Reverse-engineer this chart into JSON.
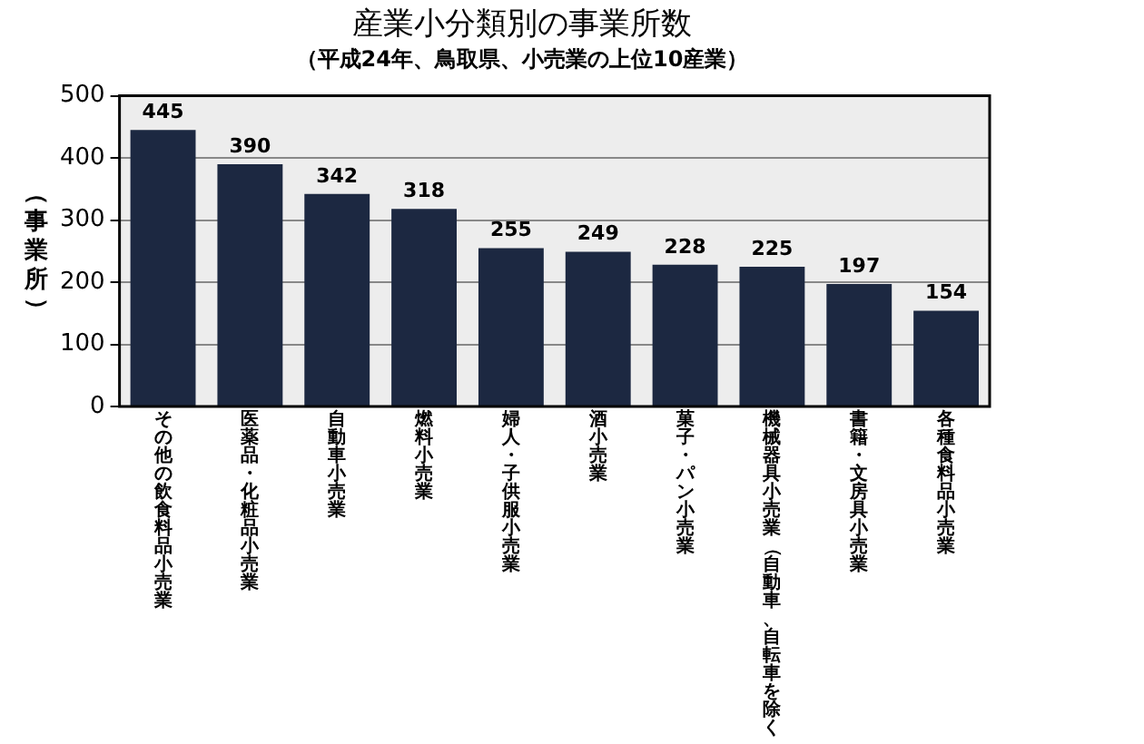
{
  "chart_data": {
    "type": "bar",
    "title": "産業小分類別の事業所数",
    "subtitle": "（平成24年、鳥取県、小売業の上位10産業）",
    "ylabel": "（事業所）",
    "categories": [
      "その他の飲食料品小売業",
      "医薬品・化粧品小売業",
      "自動車小売業",
      "燃料小売業",
      "婦人・子供服小売業",
      "酒小売業",
      "菓子・パン小売業",
      "機械器具小売業（自動車、自転車を除く",
      "書籍・文房具小売業",
      "各種食料品小売業"
    ],
    "values": [
      445,
      390,
      342,
      318,
      255,
      249,
      228,
      225,
      197,
      154
    ],
    "color": "#1c2841",
    "ylim": [
      0,
      500
    ],
    "yticks": [
      0,
      100,
      200,
      300,
      400,
      500
    ],
    "grid": "y",
    "data_labels": true,
    "legend": false
  }
}
